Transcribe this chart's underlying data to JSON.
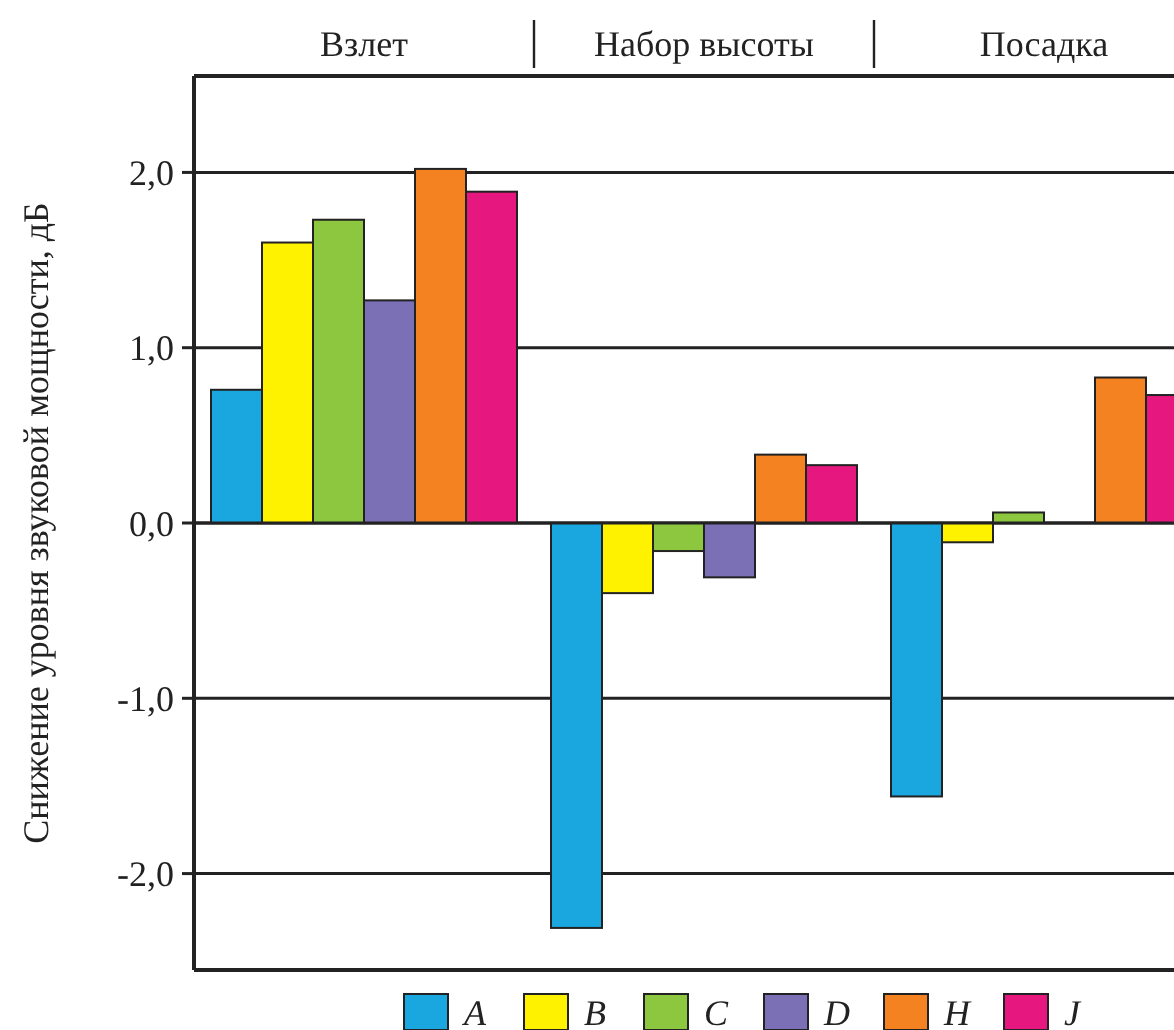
{
  "chart_data": {
    "type": "bar",
    "ylabel": "Снижение уровня звуковой мощности, дБ",
    "categories": [
      "Взлет",
      "Набор высоты",
      "Посадка"
    ],
    "series": [
      {
        "name": "A",
        "color": "#1aa7e0",
        "values": [
          0.76,
          -2.31,
          -1.56
        ]
      },
      {
        "name": "B",
        "color": "#fff200",
        "values": [
          1.6,
          -0.4,
          -0.11
        ]
      },
      {
        "name": "C",
        "color": "#8dc63f",
        "values": [
          1.73,
          -0.16,
          0.06
        ]
      },
      {
        "name": "D",
        "color": "#7b6fb5",
        "values": [
          1.27,
          -0.31,
          null
        ]
      },
      {
        "name": "H",
        "color": "#f58220",
        "values": [
          2.02,
          0.39,
          0.83
        ]
      },
      {
        "name": "J",
        "color": "#e6177f",
        "values": [
          1.89,
          0.33,
          0.73
        ]
      }
    ],
    "ylim": [
      -2.55,
      2.55
    ],
    "yticks": [
      {
        "value": -2,
        "label": "-2,0"
      },
      {
        "value": -1,
        "label": "-1,0"
      },
      {
        "value": 0,
        "label": "0,0"
      },
      {
        "value": 1,
        "label": "1,0"
      },
      {
        "value": 2,
        "label": "2,0"
      }
    ],
    "grid": "y",
    "legend": "bottom"
  }
}
